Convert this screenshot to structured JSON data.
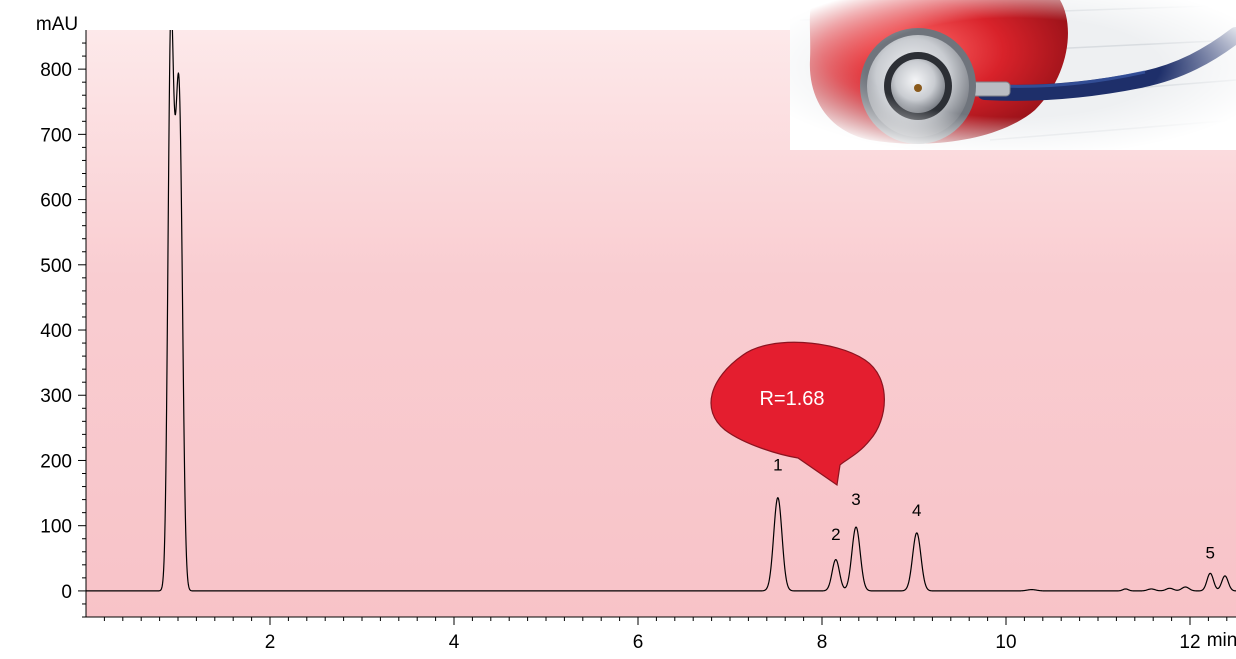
{
  "chart_data": {
    "type": "line",
    "title": "",
    "xlabel": "",
    "ylabel": "",
    "x_unit": "min",
    "y_unit": "mAU",
    "xlim": [
      0,
      12.5
    ],
    "ylim": [
      -40,
      860
    ],
    "x_ticks": [
      2,
      4,
      6,
      8,
      10,
      12
    ],
    "x_tick_labels": [
      "2",
      "4",
      "6",
      "8",
      "10",
      "12"
    ],
    "y_ticks": [
      0,
      100,
      200,
      300,
      400,
      500,
      600,
      700,
      800
    ],
    "y_tick_labels": [
      "0",
      "100",
      "200",
      "300",
      "400",
      "500",
      "600",
      "700",
      "800"
    ],
    "grid": false,
    "legend": "none",
    "background": {
      "top": "#fde9ea",
      "bottom": "#f8c3c8"
    },
    "line_color": "#000000",
    "series": [
      {
        "peaks": [
          {
            "t": 0.92,
            "h": 812,
            "w": 0.03
          },
          {
            "t": 0.99,
            "h": 560,
            "w": 0.035
          },
          {
            "t": 1.03,
            "h": 380,
            "w": 0.03
          },
          {
            "t": 7.52,
            "h": 143,
            "w": 0.045
          },
          {
            "t": 8.15,
            "h": 48,
            "w": 0.04
          },
          {
            "t": 8.37,
            "h": 98,
            "w": 0.045
          },
          {
            "t": 9.03,
            "h": 89,
            "w": 0.045
          },
          {
            "t": 10.28,
            "h": 2,
            "w": 0.05
          },
          {
            "t": 11.3,
            "h": 3,
            "w": 0.03
          },
          {
            "t": 11.58,
            "h": 3,
            "w": 0.04
          },
          {
            "t": 11.78,
            "h": 4,
            "w": 0.04
          },
          {
            "t": 11.95,
            "h": 6,
            "w": 0.04
          },
          {
            "t": 12.22,
            "h": 27,
            "w": 0.035
          },
          {
            "t": 12.38,
            "h": 23,
            "w": 0.035
          }
        ]
      }
    ],
    "peak_labels": [
      {
        "label": "1",
        "t": 7.52,
        "y": 185
      },
      {
        "label": "2",
        "t": 8.15,
        "y": 78
      },
      {
        "label": "3",
        "t": 8.37,
        "y": 132
      },
      {
        "label": "4",
        "t": 9.03,
        "y": 115
      },
      {
        "label": "5",
        "t": 12.22,
        "y": 50
      }
    ],
    "annotations": [
      {
        "text": "R=1.68",
        "fill": "#e41e2f",
        "stroke": "#8c1420",
        "text_color": "#ffffff"
      }
    ]
  },
  "image": {
    "name": "stethoscope-on-red-heart-photo",
    "colors": {
      "heart": "#d8222a",
      "tubing": "#1e2f6a",
      "metal": "#c9ccd1"
    }
  }
}
